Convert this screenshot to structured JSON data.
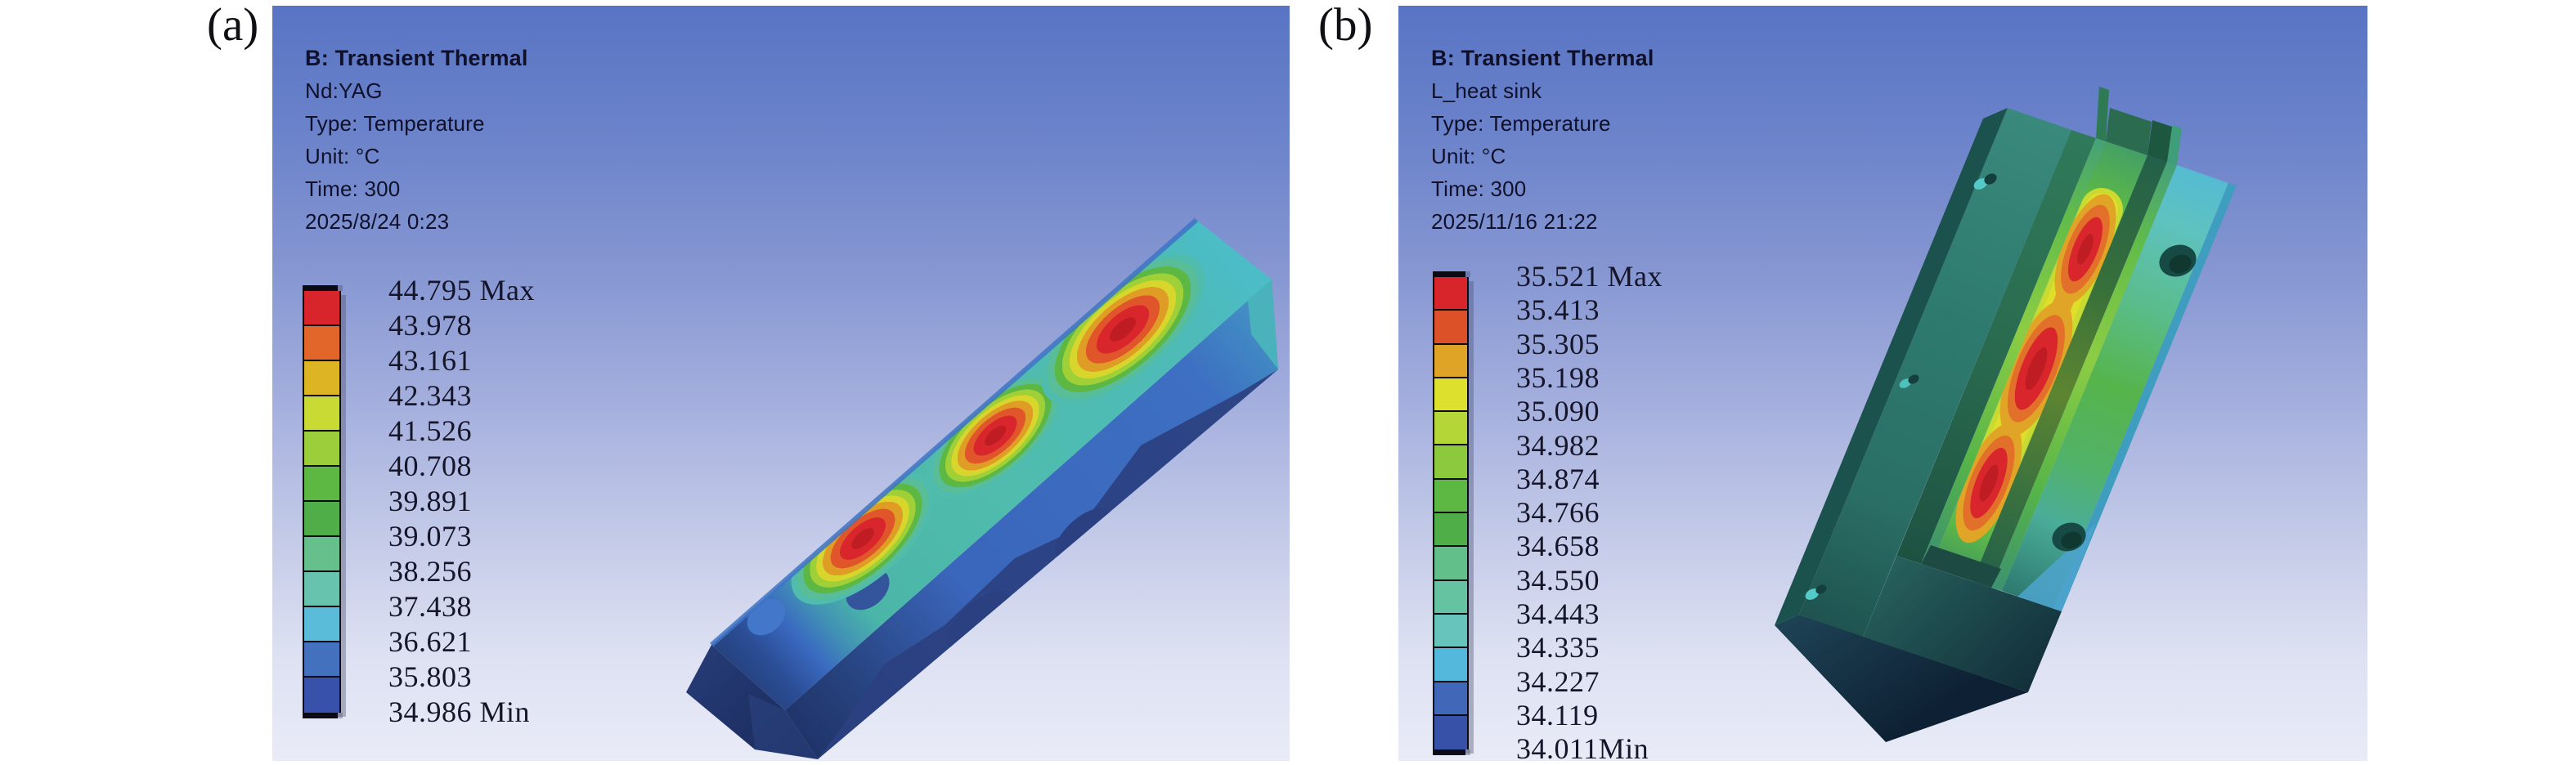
{
  "figure": {
    "panel_labels": [
      "(a)",
      "(b)"
    ]
  },
  "panel_a": {
    "header": {
      "title": "B: Transient Thermal",
      "lines": [
        "Nd:YAG",
        "Type: Temperature",
        "Unit: °C",
        "Time: 300",
        "2025/8/24 0:23"
      ]
    },
    "legend": {
      "labels": [
        "44.795 Max",
        "43.978",
        "43.161",
        "42.343",
        "41.526",
        "40.708",
        "39.891",
        "39.073",
        "38.256",
        "37.438",
        "36.621",
        "35.803",
        "34.986 Min"
      ],
      "band_colors": [
        "#d8252c",
        "#e2662a",
        "#ddb424",
        "#c8da33",
        "#9ccd3a",
        "#5cb843",
        "#4fae47",
        "#66c08b",
        "#67c3ad",
        "#5bbcd9",
        "#4371bd",
        "#3852ab"
      ]
    }
  },
  "panel_b": {
    "header": {
      "title": "B: Transient Thermal",
      "lines": [
        "L_heat sink",
        "Type: Temperature",
        "Unit: °C",
        "Time: 300",
        "2025/11/16 21:22"
      ]
    },
    "legend": {
      "labels": [
        "35.521 Max",
        "35.413",
        "35.305",
        "35.198",
        "35.090",
        "34.982",
        "34.874",
        "34.766",
        "34.658",
        "34.550",
        "34.443",
        "34.335",
        "34.227",
        "34.119",
        "34.011Min"
      ],
      "band_colors": [
        "#d8252c",
        "#dd5129",
        "#dfa426",
        "#dde02c",
        "#b5d637",
        "#8cc93c",
        "#5cb843",
        "#4fae47",
        "#63bf8a",
        "#66c3a2",
        "#67c4bc",
        "#54b7dc",
        "#4168b8",
        "#3751a8"
      ]
    }
  },
  "chart_data": [
    {
      "type": "heatmap",
      "title": "B: Transient Thermal — Nd:YAG temperature contour",
      "result_object": "Nd:YAG",
      "quantity": "Temperature",
      "unit": "°C",
      "time": 300,
      "timestamp": "2025/8/24 0:23",
      "max": 44.795,
      "min": 34.986,
      "contour_levels": [
        44.795,
        43.978,
        43.161,
        42.343,
        41.526,
        40.708,
        39.891,
        39.073,
        38.256,
        37.438,
        36.621,
        35.803,
        34.986
      ],
      "legend_position": "left",
      "annotations": [
        "three elliptical hot spots (~44.8 °C) along the top face of the slab",
        "slab body ~35–38 °C (blue), far end ~37 °C (teal)"
      ]
    },
    {
      "type": "heatmap",
      "title": "B: Transient Thermal — L_heat sink temperature contour",
      "result_object": "L_heat sink",
      "quantity": "Temperature",
      "unit": "°C",
      "time": 300,
      "timestamp": "2025/11/16 21:22",
      "max": 35.521,
      "min": 34.011,
      "contour_levels": [
        35.521,
        35.413,
        35.305,
        35.198,
        35.09,
        34.982,
        34.874,
        34.766,
        34.658,
        34.55,
        34.443,
        34.335,
        34.227,
        34.119,
        34.011
      ],
      "legend_position": "left",
      "annotations": [
        "three red hot spots (~35.5 °C) along central crystal channel",
        "heat-sink body ~34.3–34.9 °C (green/teal)"
      ]
    }
  ]
}
